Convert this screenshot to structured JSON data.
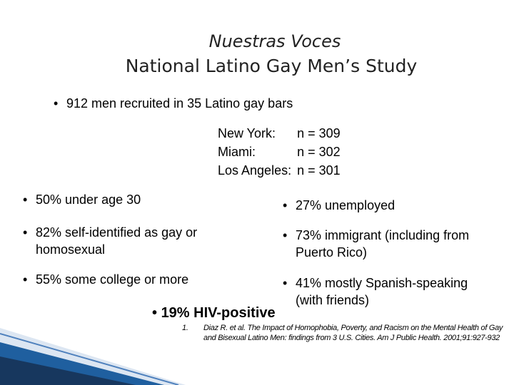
{
  "title": "Nuestras Voces",
  "subtitle": "National Latino Gay Men’s Study",
  "intro": "912 men recruited in 35 Latino gay bars",
  "sites": [
    {
      "city": "New York:",
      "n": "n = 309"
    },
    {
      "city": "Miami:",
      "n": "n = 302"
    },
    {
      "city": "Los Angeles:",
      "n": "n = 301"
    }
  ],
  "left_bullets": [
    "50% under age 30",
    "82% self-identified as gay or homosexual",
    "55% some college or more"
  ],
  "right_bullets": [
    "27% unemployed",
    "73% immigrant (including from Puerto Rico)",
    "41% mostly Spanish-speaking (with friends)"
  ],
  "highlight": "19% HIV-positive",
  "footnote": {
    "number": "1.",
    "text": "Diaz R. et al. The Impact of Homophobia, Poverty, and Racism on the Mental Health of Gay and Bisexual Latino Men: findings from 3 U.S. Cities. Am J Public Health. 2001;91:927-932"
  }
}
